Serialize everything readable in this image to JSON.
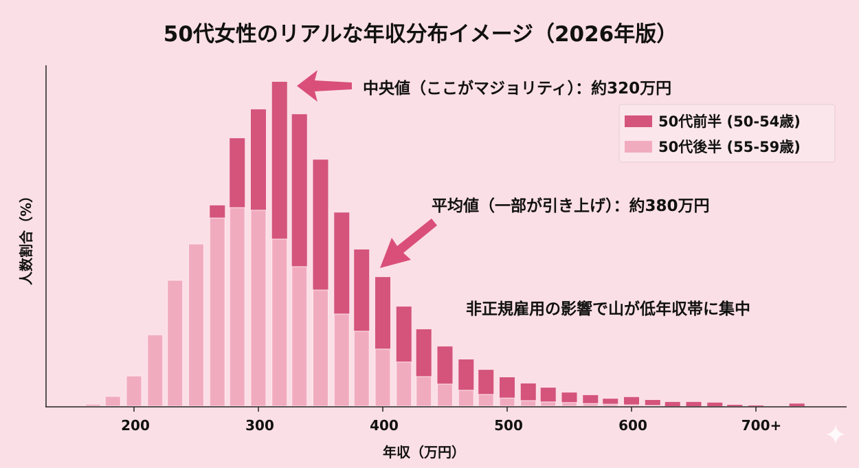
{
  "chart_data": {
    "type": "bar",
    "title": "50代女性のリアルな年収分布イメージ（2026年版）",
    "xlabel": "年収（万円）",
    "ylabel": "人数割合（%）",
    "x_ticks": [
      "200",
      "300",
      "400",
      "500",
      "600",
      "700+"
    ],
    "x_tick_values": [
      200,
      300,
      400,
      500,
      600,
      700
    ],
    "xlim": [
      130,
      760
    ],
    "ylim_relative": [
      0,
      100
    ],
    "grid": false,
    "legend_position": "top-right",
    "x": [
      167,
      183,
      200,
      217,
      233,
      250,
      267,
      283,
      300,
      317,
      333,
      350,
      367,
      383,
      400,
      417,
      433,
      450,
      467,
      483,
      500,
      517,
      533,
      550,
      567,
      583,
      600,
      617,
      633,
      650,
      667,
      683,
      700,
      717,
      733
    ],
    "series": [
      {
        "name": "50代前半 (50-54歳)",
        "color": "#d4547c",
        "values": [
          0.2,
          1.5,
          5.9,
          12.5,
          22.9,
          41.9,
          61.9,
          82.6,
          91.5,
          100,
          90,
          76,
          59.7,
          48.3,
          39.8,
          30.7,
          23.7,
          18.4,
          14.4,
          11.2,
          8.9,
          7,
          5.7,
          4.2,
          3.4,
          2.3,
          2.8,
          1.9,
          1.3,
          1.3,
          1.1,
          0.4,
          0.2,
          0,
          0.8
        ]
      },
      {
        "name": "50代後半 (55-59歳)",
        "color": "#f1abbf",
        "values": [
          0.6,
          3,
          9.3,
          22,
          38.8,
          50,
          58,
          61.2,
          60.4,
          51.5,
          43,
          35.8,
          28.4,
          23.1,
          17.6,
          13.6,
          9.1,
          6.8,
          4.9,
          3.6,
          2.5,
          1.7,
          1.3,
          1.1,
          0.8,
          0.6,
          0.4,
          0.2,
          0,
          0,
          0,
          0,
          0,
          0,
          0
        ]
      }
    ],
    "annotations": {
      "median": "中央値（ここがマジョリティ）：約320万円",
      "mean": "平均値（一部が引き上げ）：約380万円",
      "note": "非正規雇用の影響で山が低年収帯に集中"
    }
  },
  "colors": {
    "background": "#fbdfe6",
    "arrow": "#d94f7a"
  }
}
